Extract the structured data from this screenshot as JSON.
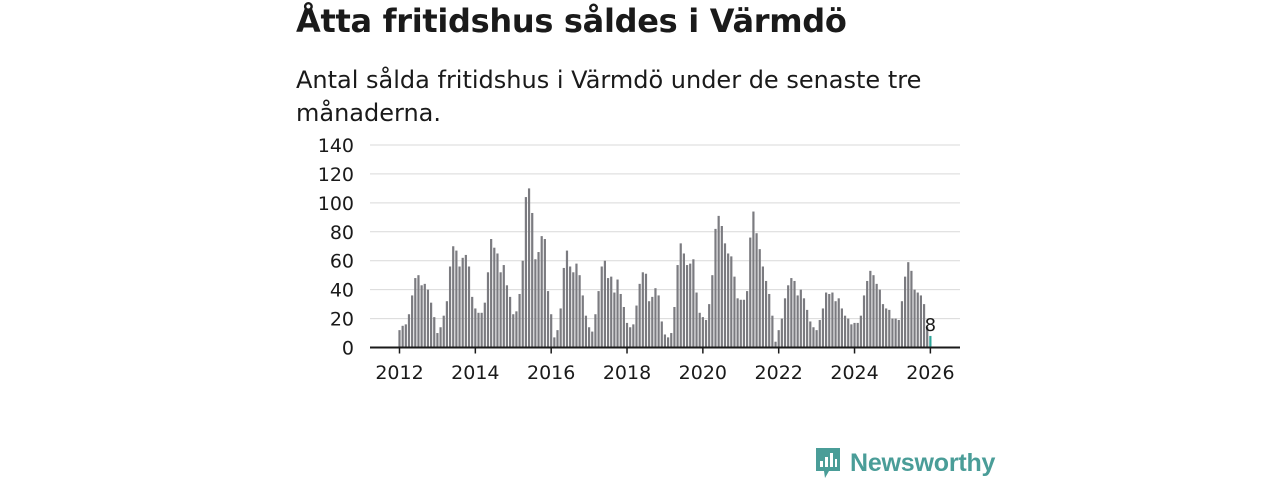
{
  "header": {
    "title": "Åtta fritidshus såldes i Värmdö",
    "subtitle": "Antal sålda fritidshus i Värmdö under de senaste tre månaderna."
  },
  "brand": {
    "name": "Newsworthy",
    "icon": "newsworthy-logo-icon",
    "color": "#4a9d98"
  },
  "colors": {
    "bar": "#7b7b80",
    "highlight": "#2fa59a",
    "grid": "#d9d9d9",
    "axis": "#1a1a1a"
  },
  "chart_data": {
    "type": "bar",
    "title": "Åtta fritidshus såldes i Värmdö",
    "subtitle": "Antal sålda fritidshus i Värmdö under de senaste tre månaderna.",
    "xlabel": "",
    "ylabel": "",
    "ylim": [
      0,
      140
    ],
    "y_ticks": [
      0,
      20,
      40,
      60,
      80,
      100,
      120,
      140
    ],
    "x_ticks": [
      "2012",
      "2014",
      "2016",
      "2018",
      "2020",
      "2022",
      "2024",
      "2026"
    ],
    "grid": true,
    "start": "2012-01",
    "end": "2026-01",
    "highlight_label": "8",
    "values": [
      12,
      15,
      16,
      23,
      36,
      48,
      50,
      43,
      44,
      40,
      31,
      21,
      10,
      14,
      22,
      32,
      56,
      70,
      67,
      56,
      62,
      64,
      56,
      35,
      27,
      24,
      24,
      31,
      52,
      75,
      69,
      65,
      52,
      57,
      43,
      35,
      23,
      25,
      37,
      60,
      104,
      110,
      93,
      61,
      66,
      77,
      75,
      39,
      23,
      7,
      12,
      27,
      55,
      67,
      56,
      52,
      58,
      50,
      36,
      22,
      14,
      11,
      23,
      39,
      56,
      60,
      48,
      49,
      38,
      47,
      37,
      28,
      17,
      14,
      16,
      29,
      44,
      52,
      51,
      32,
      35,
      41,
      36,
      18,
      9,
      7,
      10,
      28,
      57,
      72,
      65,
      57,
      58,
      61,
      38,
      24,
      21,
      19,
      30,
      50,
      82,
      91,
      84,
      72,
      65,
      63,
      49,
      34,
      33,
      33,
      39,
      76,
      94,
      79,
      68,
      56,
      46,
      37,
      22,
      4,
      12,
      20,
      34,
      43,
      48,
      46,
      36,
      40,
      34,
      26,
      18,
      14,
      12,
      19,
      27,
      38,
      37,
      38,
      32,
      34,
      27,
      22,
      20,
      16,
      17,
      17,
      22,
      36,
      46,
      53,
      50,
      44,
      40,
      30,
      27,
      26,
      20,
      20,
      19,
      32,
      49,
      59,
      53,
      40,
      38,
      36,
      30,
      14,
      8
    ]
  }
}
